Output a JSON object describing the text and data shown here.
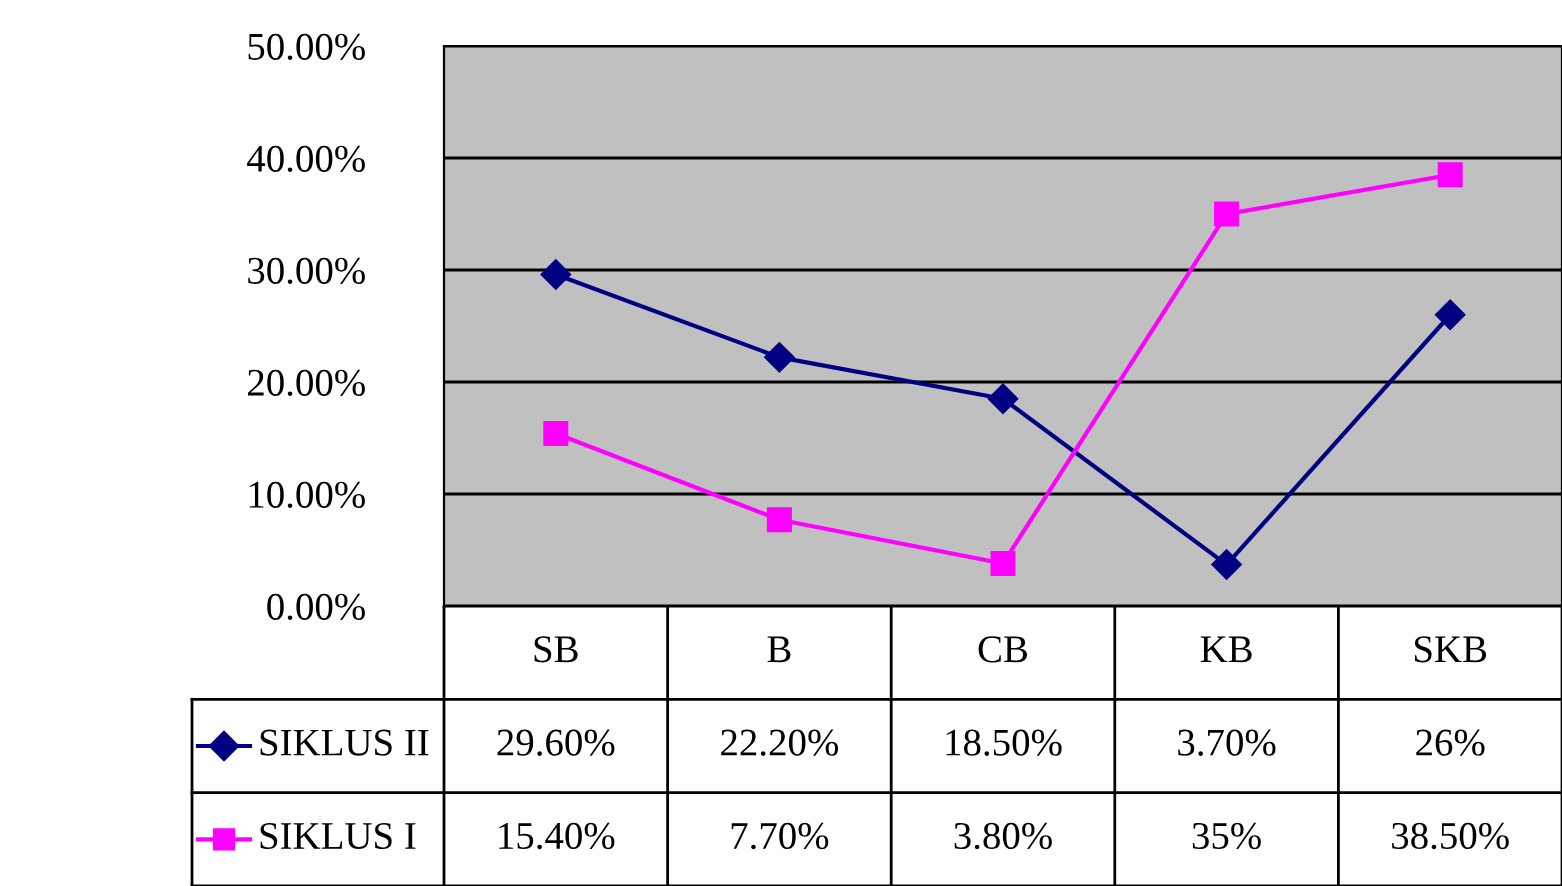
{
  "chart_data": {
    "type": "line",
    "categories": [
      "SB",
      "B",
      "CB",
      "KB",
      "SKB"
    ],
    "series": [
      {
        "name": "SIKLUS II",
        "color": "#000080",
        "marker": "diamond",
        "values": [
          29.6,
          22.2,
          18.5,
          3.7,
          26
        ],
        "value_labels": [
          "29.60%",
          "22.20%",
          "18.50%",
          "3.70%",
          "26%"
        ]
      },
      {
        "name": "SIKLUS I",
        "color": "#ff00ff",
        "marker": "square",
        "values": [
          15.4,
          7.7,
          3.8,
          35,
          38.5
        ],
        "value_labels": [
          "15.40%",
          "7.70%",
          "3.80%",
          "35%",
          "38.50%"
        ]
      }
    ],
    "ylim": [
      0,
      50
    ],
    "yticks": [
      {
        "value": 0,
        "label": "0.00%"
      },
      {
        "value": 10,
        "label": "10.00%"
      },
      {
        "value": 20,
        "label": "20.00%"
      },
      {
        "value": 30,
        "label": "30.00%"
      },
      {
        "value": 40,
        "label": "40.00%"
      },
      {
        "value": 50,
        "label": "50.00%"
      }
    ],
    "grid": "y",
    "legend": "bottom",
    "line_style": "solid"
  }
}
